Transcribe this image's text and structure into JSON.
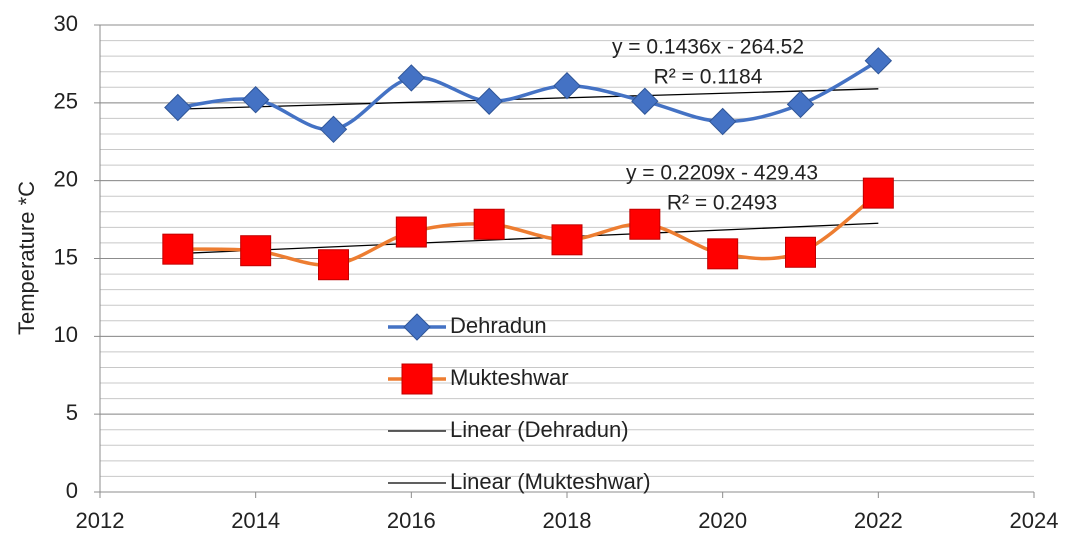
{
  "chart_data": {
    "type": "line",
    "smooth": true,
    "ylabel": "Temperature *C",
    "xlim": [
      2012,
      2024
    ],
    "xticks": [
      2012,
      2014,
      2016,
      2018,
      2020,
      2022,
      2024
    ],
    "ylim": [
      0,
      30
    ],
    "yticks": [
      0,
      5,
      10,
      15,
      20,
      25,
      30
    ],
    "grid": true,
    "minor_grid": 1,
    "legend": "bottom",
    "x": [
      2013,
      2014,
      2015,
      2016,
      2017,
      2018,
      2019,
      2020,
      2021,
      2022
    ],
    "series": [
      {
        "name": "Dehradun",
        "color": "#4472c4",
        "marker": "diamond",
        "values": [
          24.7,
          25.2,
          23.3,
          26.6,
          25.1,
          26.1,
          25.1,
          23.8,
          24.9,
          27.7
        ],
        "trendline": {
          "name": "Linear (Dehradun)",
          "color": "#000000",
          "equation": "y = 0.1436x - 264.52",
          "r2": "R² = 0.1184"
        }
      },
      {
        "name": "Mukteshwar",
        "color": "#ed7d31",
        "marker_color": "#ff0000",
        "marker": "square",
        "values": [
          15.6,
          15.5,
          14.6,
          16.7,
          17.2,
          16.2,
          17.2,
          15.3,
          15.4,
          19.2
        ],
        "trendline": {
          "name": "Linear (Mukteshwar)",
          "color": "#000000",
          "equation": "y = 0.2209x - 429.43",
          "r2": "R² = 0.2493"
        }
      }
    ]
  }
}
